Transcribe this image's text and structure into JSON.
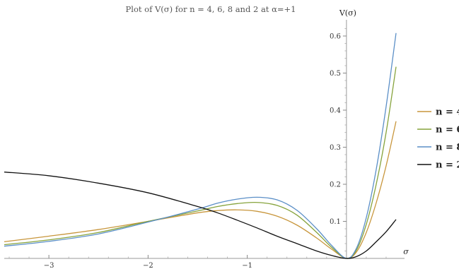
{
  "chart_data": {
    "type": "line",
    "title": "Plot of V(σ) for n = 4, 6, 8 and 2 at α=+1",
    "xlabel": "σ",
    "ylabel": "V(σ)",
    "xlim": [
      -3.45,
      0.5
    ],
    "ylim": [
      0,
      0.64
    ],
    "x_ticks": [
      -3,
      -2,
      -1
    ],
    "x_tick_labels": [
      "−3",
      "−2",
      "−1"
    ],
    "y_ticks": [
      0.1,
      0.2,
      0.3,
      0.4,
      0.5,
      0.6
    ],
    "y_tick_labels": [
      "0.1",
      "0.2",
      "0.3",
      "0.4",
      "0.5",
      "0.6"
    ],
    "grid": false,
    "legend_position": "right",
    "x": [
      -3.45,
      -3.0,
      -2.5,
      -2.0,
      -1.5,
      -1.3,
      -1.1,
      -0.9,
      -0.7,
      -0.5,
      -0.3,
      -0.15,
      0.0,
      0.1,
      0.2,
      0.3,
      0.4,
      0.5
    ],
    "series": [
      {
        "name": "n = 4",
        "color": "#c8963c",
        "values": [
          0.045,
          0.06,
          0.078,
          0.1,
          0.123,
          0.129,
          0.131,
          0.127,
          0.114,
          0.09,
          0.055,
          0.025,
          0.0,
          0.017,
          0.07,
          0.15,
          0.25,
          0.37
        ]
      },
      {
        "name": "n = 6",
        "color": "#86a33c",
        "values": [
          0.037,
          0.05,
          0.07,
          0.1,
          0.128,
          0.14,
          0.148,
          0.151,
          0.143,
          0.117,
          0.07,
          0.03,
          0.0,
          0.022,
          0.092,
          0.2,
          0.34,
          0.517
        ]
      },
      {
        "name": "n = 8",
        "color": "#5b8fc7",
        "values": [
          0.033,
          0.046,
          0.066,
          0.098,
          0.133,
          0.149,
          0.16,
          0.165,
          0.158,
          0.13,
          0.08,
          0.035,
          0.0,
          0.027,
          0.11,
          0.24,
          0.41,
          0.608
        ]
      },
      {
        "name": "n = 2",
        "color": "#111111",
        "values": [
          0.233,
          0.223,
          0.203,
          0.177,
          0.14,
          0.123,
          0.103,
          0.082,
          0.06,
          0.04,
          0.02,
          0.008,
          0.0,
          0.005,
          0.02,
          0.045,
          0.072,
          0.105
        ]
      }
    ]
  }
}
